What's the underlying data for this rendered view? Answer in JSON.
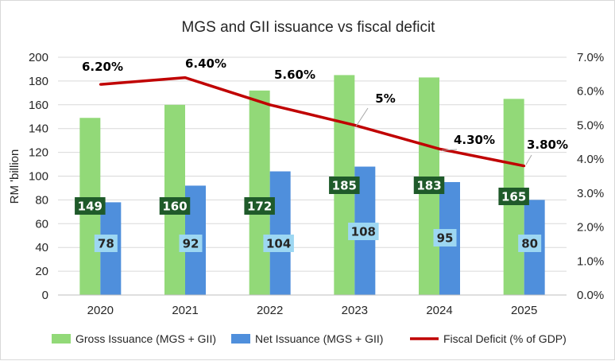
{
  "chart_data": {
    "type": "bar",
    "title": "MGS and GII issuance vs fiscal deficit",
    "ylabel": "RM 'billion",
    "y2label": "",
    "ylim": [
      0,
      200
    ],
    "y2lim": [
      0,
      7
    ],
    "yticks": [
      "0",
      "20",
      "40",
      "60",
      "80",
      "100",
      "120",
      "140",
      "160",
      "180",
      "200"
    ],
    "y2ticks": [
      "0.0%",
      "1.0%",
      "2.0%",
      "3.0%",
      "4.0%",
      "5.0%",
      "6.0%",
      "7.0%"
    ],
    "categories": [
      "2020",
      "2021",
      "2022",
      "2023",
      "2024",
      "2025"
    ],
    "series": [
      {
        "name": "Gross Issuance (MGS + GII)",
        "kind": "bar",
        "color": "#92d978",
        "label_bg": "#1f5a2a",
        "values": [
          149,
          160,
          172,
          185,
          183,
          165
        ],
        "labels": [
          "149",
          "160",
          "172",
          "185",
          "183",
          "165"
        ]
      },
      {
        "name": "Net Issuance (MGS + GII)",
        "kind": "bar",
        "color": "#4f8fdc",
        "label_bg": "#9dd7f2",
        "values": [
          78,
          92,
          104,
          108,
          95,
          80
        ],
        "labels": [
          "78",
          "92",
          "104",
          "108",
          "95",
          "80"
        ]
      },
      {
        "name": "Fiscal Deficit (% of GDP)",
        "kind": "line",
        "axis": "right",
        "color": "#c00000",
        "values": [
          6.2,
          6.4,
          5.6,
          5.0,
          4.3,
          3.8
        ],
        "labels": [
          "6.20%",
          "6.40%",
          "5.60%",
          "5%",
          "4.30%",
          "3.80%"
        ]
      }
    ],
    "grid": true,
    "legend_position": "bottom"
  }
}
